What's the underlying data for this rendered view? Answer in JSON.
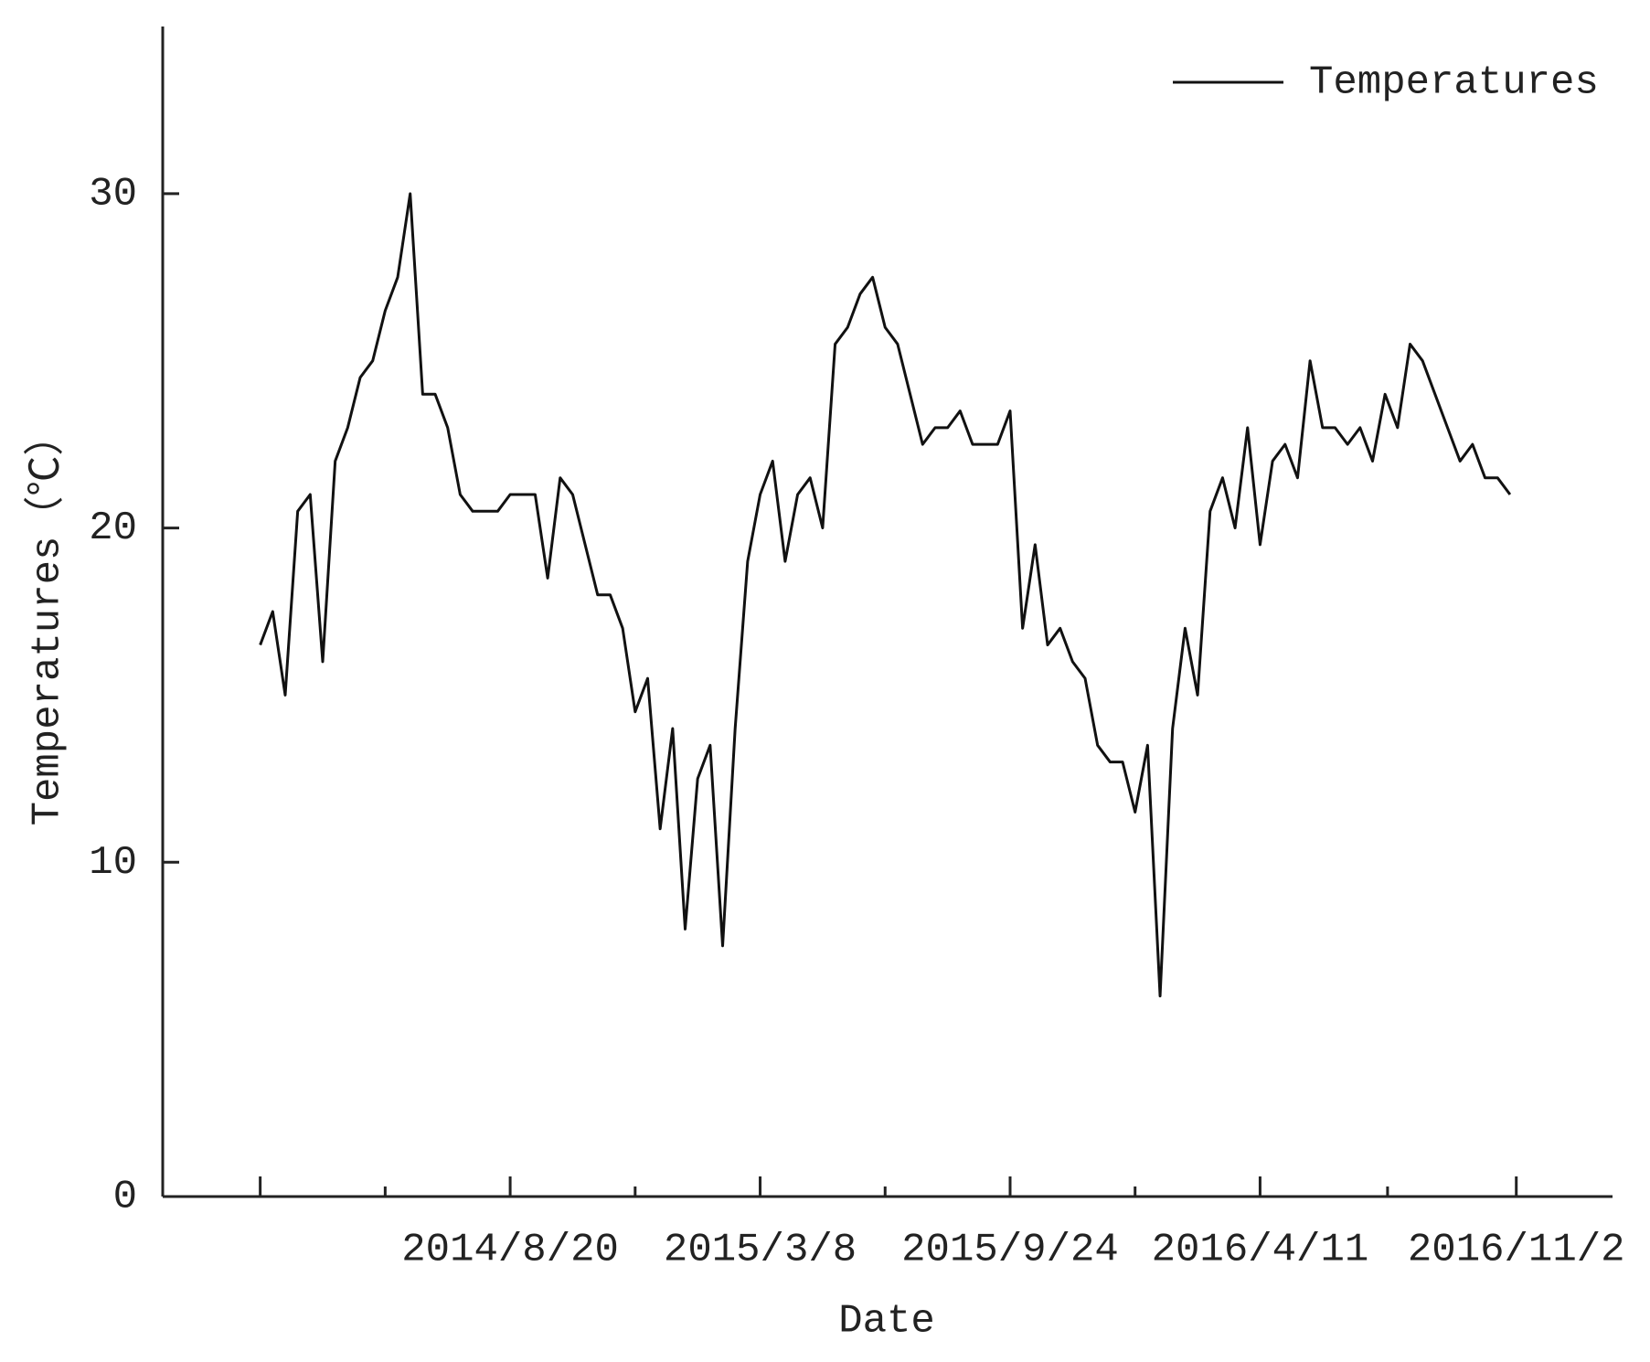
{
  "chart_data": {
    "type": "line",
    "x_label": "Date",
    "y_label": "Temperatures（℃）",
    "x": [
      "2014/2/1",
      "2014/2/11",
      "2014/2/21",
      "2014/3/3",
      "2014/3/13",
      "2014/3/23",
      "2014/4/2",
      "2014/4/12",
      "2014/4/22",
      "2014/5/2",
      "2014/5/12",
      "2014/5/22",
      "2014/6/1",
      "2014/6/11",
      "2014/6/21",
      "2014/7/1",
      "2014/7/11",
      "2014/7/21",
      "2014/7/31",
      "2014/8/10",
      "2014/8/20",
      "2014/8/30",
      "2014/9/9",
      "2014/9/19",
      "2014/9/29",
      "2014/10/9",
      "2014/10/19",
      "2014/10/29",
      "2014/11/8",
      "2014/11/18",
      "2014/11/28",
      "2014/12/8",
      "2014/12/18",
      "2014/12/28",
      "2015/1/7",
      "2015/1/17",
      "2015/1/27",
      "2015/2/6",
      "2015/2/16",
      "2015/2/26",
      "2015/3/8",
      "2015/3/18",
      "2015/3/28",
      "2015/4/7",
      "2015/4/17",
      "2015/4/27",
      "2015/5/7",
      "2015/5/17",
      "2015/5/27",
      "2015/6/6",
      "2015/6/16",
      "2015/6/26",
      "2015/7/6",
      "2015/7/16",
      "2015/7/26",
      "2015/8/5",
      "2015/8/15",
      "2015/8/25",
      "2015/9/4",
      "2015/9/14",
      "2015/9/24",
      "2015/10/4",
      "2015/10/14",
      "2015/10/24",
      "2015/11/3",
      "2015/11/13",
      "2015/11/23",
      "2015/12/3",
      "2015/12/13",
      "2015/12/23",
      "2016/1/2",
      "2016/1/12",
      "2016/1/22",
      "2016/2/1",
      "2016/2/11",
      "2016/2/21",
      "2016/3/2",
      "2016/3/12",
      "2016/3/22",
      "2016/4/1",
      "2016/4/11",
      "2016/4/21",
      "2016/5/1",
      "2016/5/11",
      "2016/5/21",
      "2016/5/31",
      "2016/6/10",
      "2016/6/20",
      "2016/6/30",
      "2016/7/10",
      "2016/7/20",
      "2016/7/30",
      "2016/8/9",
      "2016/8/19",
      "2016/8/29",
      "2016/9/8",
      "2016/9/18",
      "2016/9/28",
      "2016/10/8",
      "2016/10/18",
      "2016/10/28"
    ],
    "series": [
      {
        "name": "Temperatures",
        "color": "#111111",
        "values": [
          16.5,
          17.5,
          15,
          20.5,
          21,
          16,
          22,
          23,
          24.5,
          25,
          26.5,
          27.5,
          30,
          24,
          24,
          23,
          21,
          20.5,
          20.5,
          20.5,
          21,
          21,
          21,
          18.5,
          21.5,
          21,
          19.5,
          18,
          18,
          17,
          14.5,
          15.5,
          11,
          14,
          8,
          12.5,
          13.5,
          7.5,
          14,
          19,
          21,
          22,
          19,
          21,
          21.5,
          20,
          25.5,
          26,
          27,
          27.5,
          26,
          25.5,
          24,
          22.5,
          23,
          23,
          23.5,
          22.5,
          22.5,
          22.5,
          23.5,
          17,
          19.5,
          16.5,
          17,
          16,
          15.5,
          13.5,
          13,
          13,
          11.5,
          13.5,
          6,
          14,
          17,
          15,
          20.5,
          21.5,
          20,
          23,
          19.5,
          22,
          22.5,
          21.5,
          25,
          23,
          23,
          22.5,
          23,
          22,
          24,
          23,
          25.5,
          25,
          24,
          23,
          22,
          22.5,
          21.5,
          21.5,
          21
        ]
      }
    ],
    "xlim": [
      "2013/11/15",
      "2017/1/18"
    ],
    "xticks": [
      {
        "value": "2014/2/1",
        "label": null
      },
      "2014/8/20",
      "2015/3/8",
      "2015/9/24",
      "2016/4/11",
      "2016/11/2"
    ],
    "xminorticks": [
      "2014/5/12",
      "2014/11/28",
      "2015/6/16",
      "2016/1/2",
      "2016/7/22"
    ],
    "ylim": [
      0,
      35
    ],
    "yticks": [
      0,
      10,
      20,
      30
    ],
    "grid": false,
    "legend": "upper right"
  }
}
